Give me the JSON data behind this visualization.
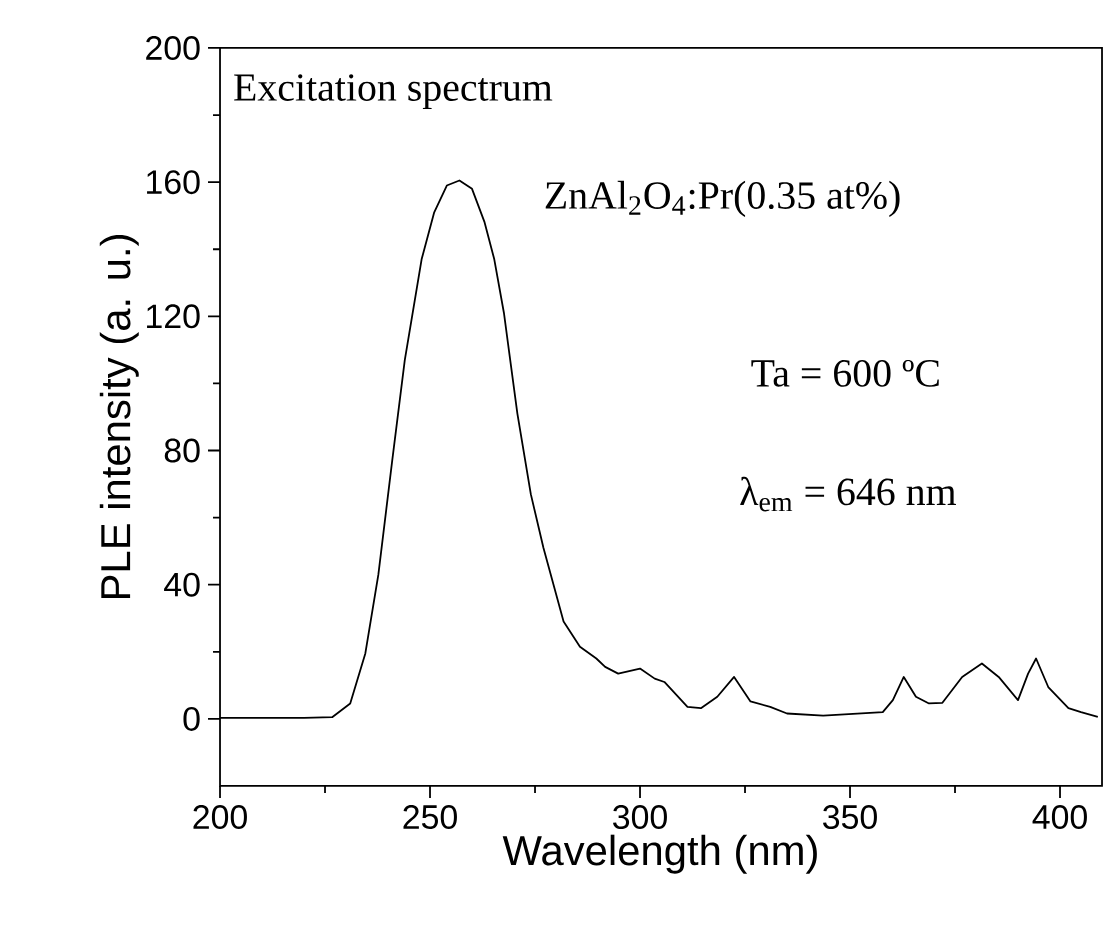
{
  "chart_data": {
    "type": "line",
    "xlabel": "Wavelength (nm)",
    "ylabel": "PLE intensity (a. u.)",
    "annotations": [
      "Excitation spectrum",
      "ZnAl$_{2}$O$_{4}$:Pr(0.35 at%)",
      "Ta = 600 ºC",
      "λ$_{em}$ = 646 nm"
    ],
    "x": [
      200,
      210,
      220,
      226.7,
      231,
      234.6,
      237.7,
      241,
      244,
      246.4,
      248,
      251,
      254,
      257,
      260,
      263,
      265.3,
      267.6,
      270.8,
      274,
      277,
      281.8,
      285.7,
      289.6,
      291.7,
      294.8,
      300,
      303.5,
      305.8,
      311.3,
      314.5,
      318.4,
      322.4,
      326.3,
      331,
      335,
      343.6,
      357.8,
      360.2,
      362.8,
      365.7,
      368.8,
      372,
      376.7,
      381.4,
      385.4,
      390,
      392.4,
      394.3,
      397.2,
      402,
      405,
      409
    ],
    "series": [
      {
        "color": "#000000",
        "values": [
          0.3,
          0.3,
          0.3,
          0.5,
          4.6,
          19.5,
          43,
          77,
          107,
          125,
          137,
          151,
          159,
          160.5,
          158,
          148,
          137,
          121,
          91,
          67,
          51,
          29,
          21.5,
          18,
          15.5,
          13.5,
          15,
          12,
          11,
          3.6,
          3.2,
          6.6,
          12.5,
          5.2,
          3.6,
          1.6,
          1,
          2,
          5.6,
          12.5,
          6.6,
          4.6,
          4.8,
          12.5,
          16.5,
          12.5,
          5.6,
          13.5,
          18,
          9.5,
          3.2,
          2,
          0.6
        ]
      }
    ],
    "xlim": [
      200,
      410
    ],
    "ylim": [
      -20,
      200
    ],
    "xticks": [
      200,
      250,
      300,
      350,
      400
    ],
    "yticks": [
      0,
      40,
      80,
      120,
      160,
      200
    ],
    "marker": "none",
    "line_style": "solid"
  }
}
